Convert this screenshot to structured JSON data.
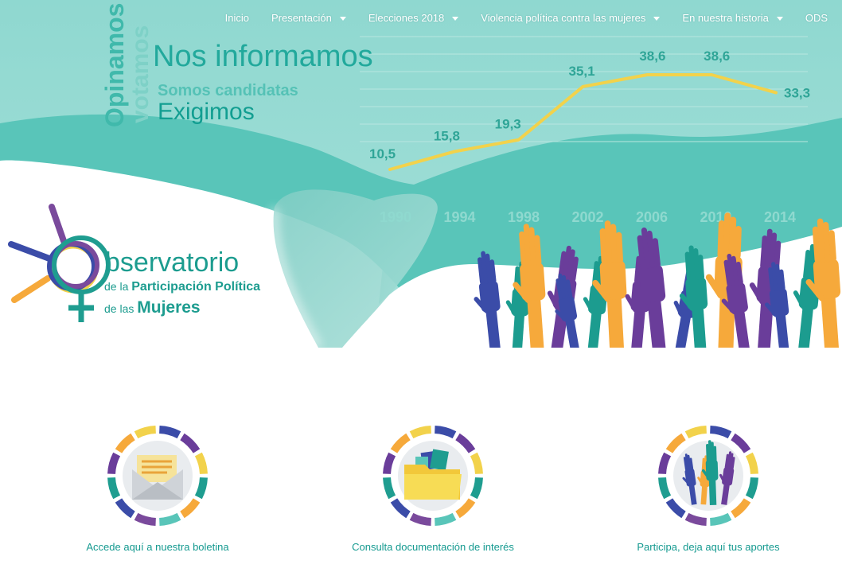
{
  "nav": {
    "items": [
      {
        "label": "Inicio",
        "dropdown": false
      },
      {
        "label": "Presentación",
        "dropdown": true
      },
      {
        "label": "Elecciones 2018",
        "dropdown": true
      },
      {
        "label": "Violencia política contra las mujeres",
        "dropdown": true
      },
      {
        "label": "En nuestra historia",
        "dropdown": true
      },
      {
        "label": "ODS",
        "dropdown": false
      }
    ]
  },
  "hero": {
    "slogans": {
      "opinamos": "Opinamos",
      "votamos": "votamos",
      "informamos": "Nos informamos",
      "candidatas": "Somos candidatas",
      "exigimos": "Exigimos"
    }
  },
  "chart_data": {
    "type": "line",
    "x": [
      "1990",
      "1994",
      "1998",
      "2002",
      "2006",
      "2010",
      "2014"
    ],
    "series": [
      {
        "values": [
          10.5,
          15.8,
          19.3,
          35.1,
          38.6,
          38.6,
          33.3
        ],
        "labels": [
          "10,5",
          "15,8",
          "19,3",
          "35,1",
          "38,6",
          "38,6",
          "33,3"
        ]
      }
    ],
    "grid": true,
    "line_color": "#f2d24b"
  },
  "logo": {
    "word": "bservatorio",
    "line2_prefix": "de la ",
    "line2_bold": "Participación Política",
    "line3_prefix": "de las ",
    "line3_bold": "Mujeres"
  },
  "features": [
    {
      "label": "Accede aquí a nuestra boletina",
      "icon": "envelope-icon"
    },
    {
      "label": "Consulta documentación de interés",
      "icon": "folder-icon"
    },
    {
      "label": "Participa, deja aquí tus aportes",
      "icon": "raised-hands-icon"
    }
  ],
  "colors": {
    "teal_light": "#8ed7cf",
    "teal": "#55c4b8",
    "teal_dark": "#1c9c8f",
    "yellow": "#f2d24b",
    "orange": "#f6a93b",
    "purple": "#6a3d9a",
    "blue": "#3b4ca8"
  }
}
